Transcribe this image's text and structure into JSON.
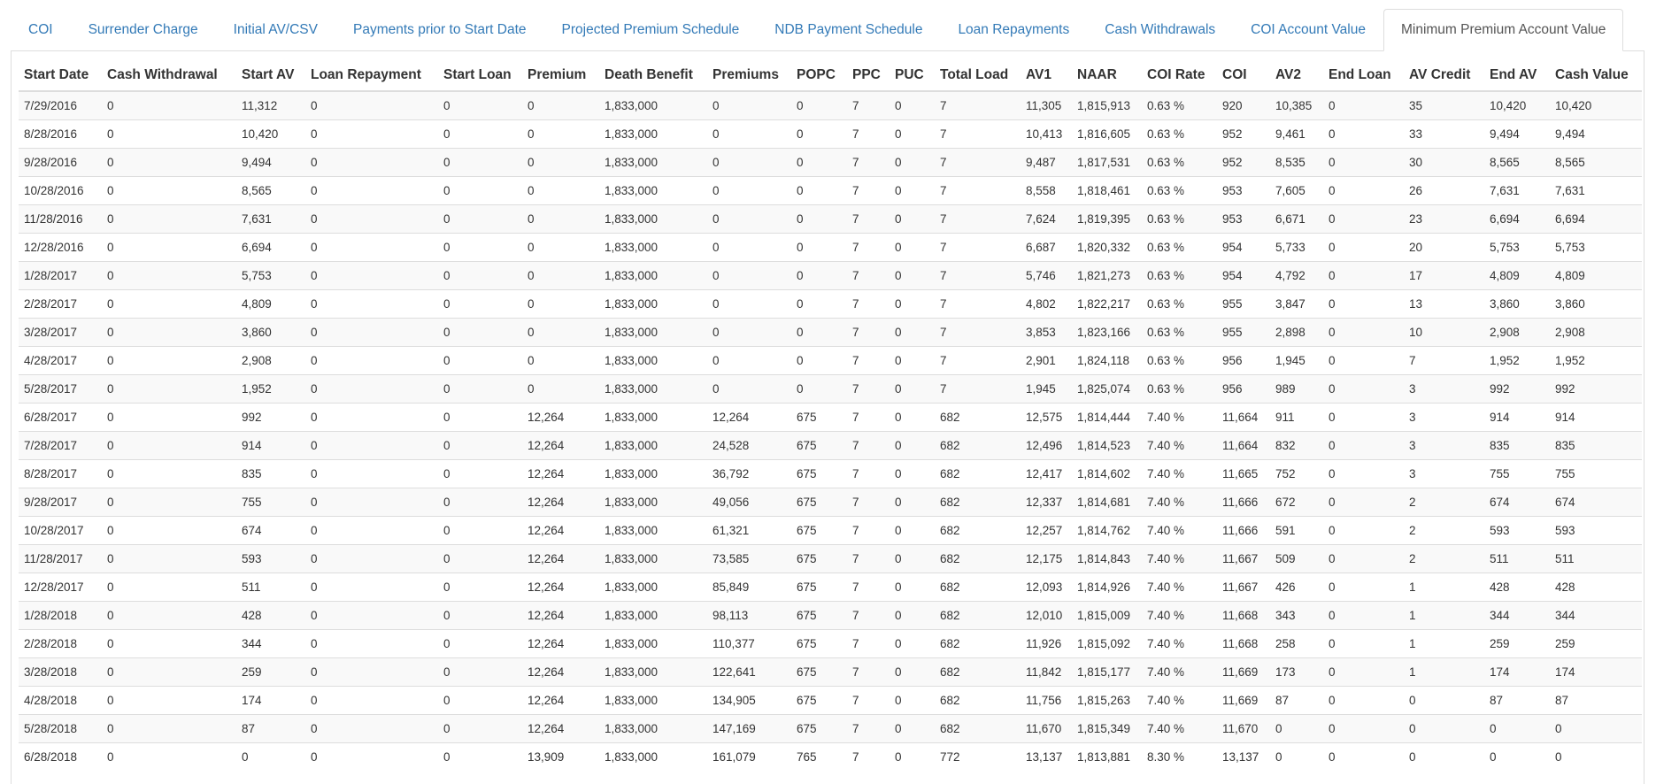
{
  "tabs": [
    "COI",
    "Surrender Charge",
    "Initial AV/CSV",
    "Payments prior to Start Date",
    "Projected Premium Schedule",
    "NDB Payment Schedule",
    "Loan Repayments",
    "Cash Withdrawals",
    "COI Account Value",
    "Minimum Premium Account Value"
  ],
  "table": {
    "columns": [
      "Start Date",
      "Cash Withdrawal",
      "Start AV",
      "Loan Repayment",
      "Start Loan",
      "Premium",
      "Death Benefit",
      "Premiums",
      "POPC",
      "PPC",
      "PUC",
      "Total Load",
      "AV1",
      "NAAR",
      "COI Rate",
      "COI",
      "AV2",
      "End Loan",
      "AV Credit",
      "End AV",
      "Cash Value"
    ],
    "rows": [
      [
        "7/29/2016",
        "0",
        "11,312",
        "0",
        "0",
        "0",
        "1,833,000",
        "0",
        "0",
        "7",
        "0",
        "7",
        "11,305",
        "1,815,913",
        "0.63 %",
        "920",
        "10,385",
        "0",
        "35",
        "10,420",
        "10,420"
      ],
      [
        "8/28/2016",
        "0",
        "10,420",
        "0",
        "0",
        "0",
        "1,833,000",
        "0",
        "0",
        "7",
        "0",
        "7",
        "10,413",
        "1,816,605",
        "0.63 %",
        "952",
        "9,461",
        "0",
        "33",
        "9,494",
        "9,494"
      ],
      [
        "9/28/2016",
        "0",
        "9,494",
        "0",
        "0",
        "0",
        "1,833,000",
        "0",
        "0",
        "7",
        "0",
        "7",
        "9,487",
        "1,817,531",
        "0.63 %",
        "952",
        "8,535",
        "0",
        "30",
        "8,565",
        "8,565"
      ],
      [
        "10/28/2016",
        "0",
        "8,565",
        "0",
        "0",
        "0",
        "1,833,000",
        "0",
        "0",
        "7",
        "0",
        "7",
        "8,558",
        "1,818,461",
        "0.63 %",
        "953",
        "7,605",
        "0",
        "26",
        "7,631",
        "7,631"
      ],
      [
        "11/28/2016",
        "0",
        "7,631",
        "0",
        "0",
        "0",
        "1,833,000",
        "0",
        "0",
        "7",
        "0",
        "7",
        "7,624",
        "1,819,395",
        "0.63 %",
        "953",
        "6,671",
        "0",
        "23",
        "6,694",
        "6,694"
      ],
      [
        "12/28/2016",
        "0",
        "6,694",
        "0",
        "0",
        "0",
        "1,833,000",
        "0",
        "0",
        "7",
        "0",
        "7",
        "6,687",
        "1,820,332",
        "0.63 %",
        "954",
        "5,733",
        "0",
        "20",
        "5,753",
        "5,753"
      ],
      [
        "1/28/2017",
        "0",
        "5,753",
        "0",
        "0",
        "0",
        "1,833,000",
        "0",
        "0",
        "7",
        "0",
        "7",
        "5,746",
        "1,821,273",
        "0.63 %",
        "954",
        "4,792",
        "0",
        "17",
        "4,809",
        "4,809"
      ],
      [
        "2/28/2017",
        "0",
        "4,809",
        "0",
        "0",
        "0",
        "1,833,000",
        "0",
        "0",
        "7",
        "0",
        "7",
        "4,802",
        "1,822,217",
        "0.63 %",
        "955",
        "3,847",
        "0",
        "13",
        "3,860",
        "3,860"
      ],
      [
        "3/28/2017",
        "0",
        "3,860",
        "0",
        "0",
        "0",
        "1,833,000",
        "0",
        "0",
        "7",
        "0",
        "7",
        "3,853",
        "1,823,166",
        "0.63 %",
        "955",
        "2,898",
        "0",
        "10",
        "2,908",
        "2,908"
      ],
      [
        "4/28/2017",
        "0",
        "2,908",
        "0",
        "0",
        "0",
        "1,833,000",
        "0",
        "0",
        "7",
        "0",
        "7",
        "2,901",
        "1,824,118",
        "0.63 %",
        "956",
        "1,945",
        "0",
        "7",
        "1,952",
        "1,952"
      ],
      [
        "5/28/2017",
        "0",
        "1,952",
        "0",
        "0",
        "0",
        "1,833,000",
        "0",
        "0",
        "7",
        "0",
        "7",
        "1,945",
        "1,825,074",
        "0.63 %",
        "956",
        "989",
        "0",
        "3",
        "992",
        "992"
      ],
      [
        "6/28/2017",
        "0",
        "992",
        "0",
        "0",
        "12,264",
        "1,833,000",
        "12,264",
        "675",
        "7",
        "0",
        "682",
        "12,575",
        "1,814,444",
        "7.40 %",
        "11,664",
        "911",
        "0",
        "3",
        "914",
        "914"
      ],
      [
        "7/28/2017",
        "0",
        "914",
        "0",
        "0",
        "12,264",
        "1,833,000",
        "24,528",
        "675",
        "7",
        "0",
        "682",
        "12,496",
        "1,814,523",
        "7.40 %",
        "11,664",
        "832",
        "0",
        "3",
        "835",
        "835"
      ],
      [
        "8/28/2017",
        "0",
        "835",
        "0",
        "0",
        "12,264",
        "1,833,000",
        "36,792",
        "675",
        "7",
        "0",
        "682",
        "12,417",
        "1,814,602",
        "7.40 %",
        "11,665",
        "752",
        "0",
        "3",
        "755",
        "755"
      ],
      [
        "9/28/2017",
        "0",
        "755",
        "0",
        "0",
        "12,264",
        "1,833,000",
        "49,056",
        "675",
        "7",
        "0",
        "682",
        "12,337",
        "1,814,681",
        "7.40 %",
        "11,666",
        "672",
        "0",
        "2",
        "674",
        "674"
      ],
      [
        "10/28/2017",
        "0",
        "674",
        "0",
        "0",
        "12,264",
        "1,833,000",
        "61,321",
        "675",
        "7",
        "0",
        "682",
        "12,257",
        "1,814,762",
        "7.40 %",
        "11,666",
        "591",
        "0",
        "2",
        "593",
        "593"
      ],
      [
        "11/28/2017",
        "0",
        "593",
        "0",
        "0",
        "12,264",
        "1,833,000",
        "73,585",
        "675",
        "7",
        "0",
        "682",
        "12,175",
        "1,814,843",
        "7.40 %",
        "11,667",
        "509",
        "0",
        "2",
        "511",
        "511"
      ],
      [
        "12/28/2017",
        "0",
        "511",
        "0",
        "0",
        "12,264",
        "1,833,000",
        "85,849",
        "675",
        "7",
        "0",
        "682",
        "12,093",
        "1,814,926",
        "7.40 %",
        "11,667",
        "426",
        "0",
        "1",
        "428",
        "428"
      ],
      [
        "1/28/2018",
        "0",
        "428",
        "0",
        "0",
        "12,264",
        "1,833,000",
        "98,113",
        "675",
        "7",
        "0",
        "682",
        "12,010",
        "1,815,009",
        "7.40 %",
        "11,668",
        "343",
        "0",
        "1",
        "344",
        "344"
      ],
      [
        "2/28/2018",
        "0",
        "344",
        "0",
        "0",
        "12,264",
        "1,833,000",
        "110,377",
        "675",
        "7",
        "0",
        "682",
        "11,926",
        "1,815,092",
        "7.40 %",
        "11,668",
        "258",
        "0",
        "1",
        "259",
        "259"
      ],
      [
        "3/28/2018",
        "0",
        "259",
        "0",
        "0",
        "12,264",
        "1,833,000",
        "122,641",
        "675",
        "7",
        "0",
        "682",
        "11,842",
        "1,815,177",
        "7.40 %",
        "11,669",
        "173",
        "0",
        "1",
        "174",
        "174"
      ],
      [
        "4/28/2018",
        "0",
        "174",
        "0",
        "0",
        "12,264",
        "1,833,000",
        "134,905",
        "675",
        "7",
        "0",
        "682",
        "11,756",
        "1,815,263",
        "7.40 %",
        "11,669",
        "87",
        "0",
        "0",
        "87",
        "87"
      ],
      [
        "5/28/2018",
        "0",
        "87",
        "0",
        "0",
        "12,264",
        "1,833,000",
        "147,169",
        "675",
        "7",
        "0",
        "682",
        "11,670",
        "1,815,349",
        "7.40 %",
        "11,670",
        "0",
        "0",
        "0",
        "0",
        "0"
      ],
      [
        "6/28/2018",
        "0",
        "0",
        "0",
        "0",
        "13,909",
        "1,833,000",
        "161,079",
        "765",
        "7",
        "0",
        "772",
        "13,137",
        "1,813,881",
        "8.30 %",
        "13,137",
        "0",
        "0",
        "0",
        "0",
        "0"
      ]
    ]
  }
}
